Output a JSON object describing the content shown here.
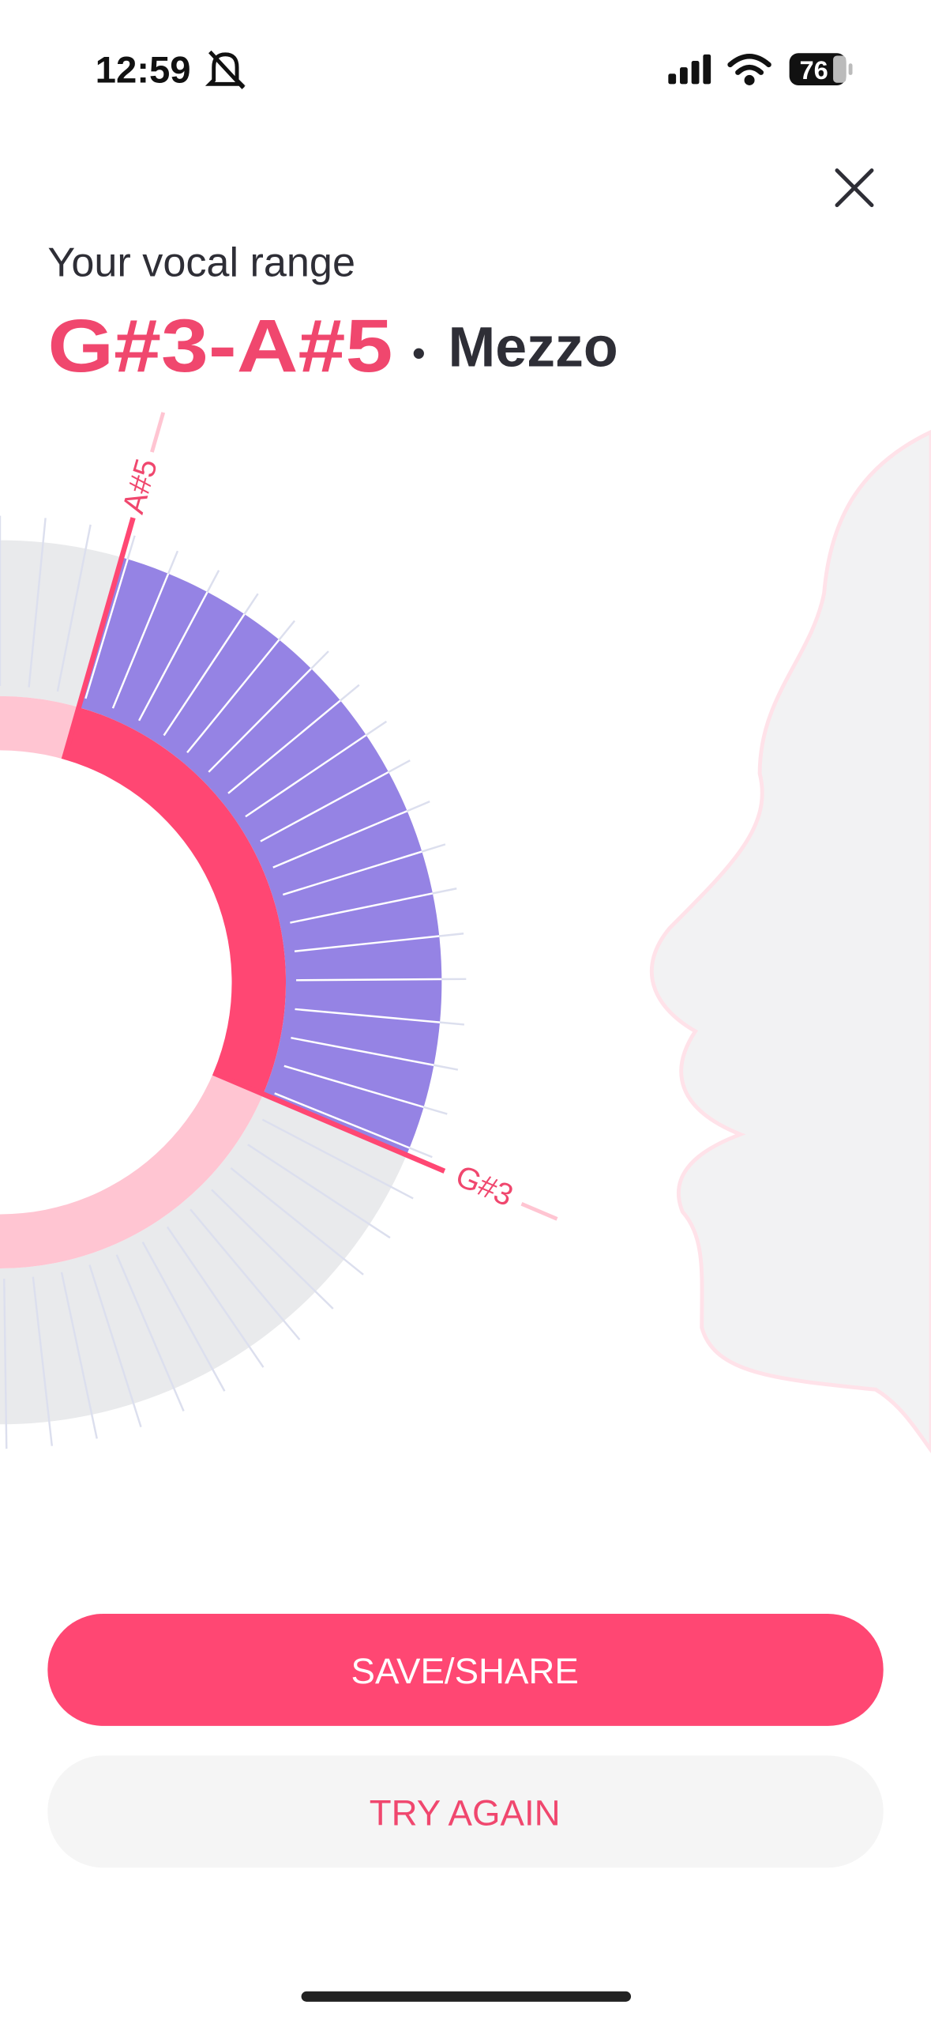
{
  "status_bar": {
    "time": "12:59",
    "battery": "76"
  },
  "header": {
    "subtitle": "Your vocal range",
    "range": "G#3-A#5",
    "separator": "•",
    "voice_type": "Mezzo"
  },
  "range_wheel": {
    "low_label": "G#3",
    "high_label": "A#5"
  },
  "buttons": {
    "primary": "SAVE/SHARE",
    "secondary": "TRY AGAIN"
  }
}
